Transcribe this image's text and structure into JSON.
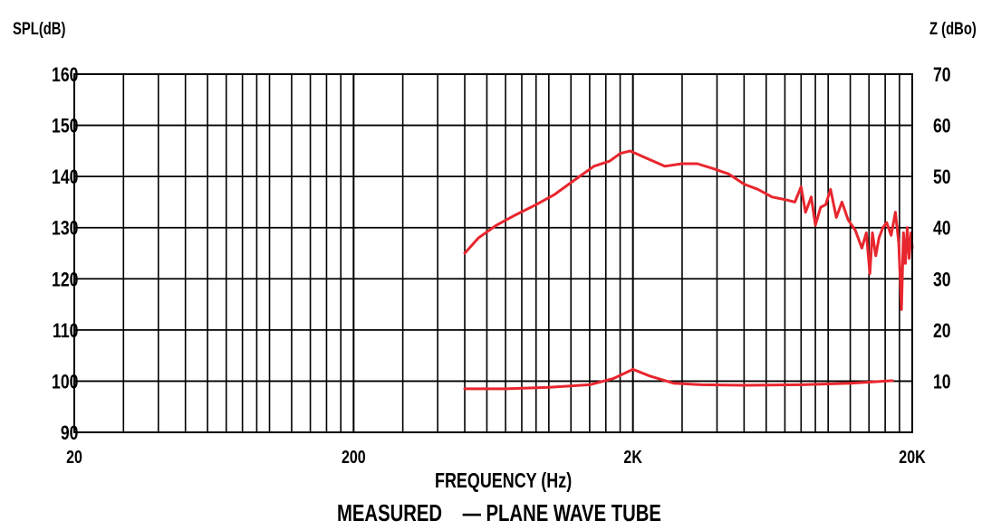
{
  "chart_data": {
    "type": "line",
    "left_axis_label": "SPL(dB)",
    "right_axis_label": "Z (dBo)",
    "xlabel": "FREQUENCY (Hz)",
    "caption": "MEASURED    — PLANE WAVE TUBE",
    "x_scale": "log",
    "xlim": [
      20,
      20000
    ],
    "ylim": [
      90,
      160
    ],
    "y2lim": [
      0,
      70
    ],
    "grid": true,
    "x_tick_labels": [
      {
        "value": 20,
        "label": "20"
      },
      {
        "value": 200,
        "label": "200"
      },
      {
        "value": 2000,
        "label": "2K"
      },
      {
        "value": 20000,
        "label": "20K"
      }
    ],
    "y_ticks": [
      160,
      150,
      140,
      130,
      120,
      110,
      100,
      90
    ],
    "y2_ticks": [
      70,
      60,
      50,
      40,
      30,
      20,
      10
    ],
    "color": "#e8262e",
    "series": [
      {
        "axis": "left",
        "x": [
          500,
          560,
          650,
          760,
          900,
          1050,
          1250,
          1450,
          1650,
          1800,
          1950,
          2050,
          2250,
          2600,
          3000,
          3400,
          3900,
          4400,
          5000,
          5600,
          6300,
          7000,
          7600,
          8000,
          8300,
          8700,
          9000,
          9400,
          9800,
          10200,
          10700,
          11200,
          11800,
          12500,
          13200,
          13700,
          14100,
          14400,
          14800,
          15200,
          15700,
          16200,
          16800,
          17400,
          17900,
          18300,
          18600,
          18900,
          19200,
          19500,
          19800,
          20000
        ],
        "y": [
          125,
          128,
          130.5,
          132.5,
          134.5,
          136.5,
          139.5,
          142,
          143,
          144.5,
          145,
          144.5,
          143.5,
          142,
          142.5,
          142.5,
          141.5,
          140.5,
          138.5,
          137.5,
          136,
          135.5,
          135,
          138,
          133,
          136,
          130.5,
          134,
          134.5,
          137.5,
          132,
          135,
          131.5,
          129.5,
          126,
          129,
          121,
          129,
          124.5,
          128,
          130,
          131,
          128.5,
          133,
          127,
          114,
          129,
          123,
          130,
          124,
          129,
          126
        ]
      },
      {
        "axis": "right",
        "x": [
          500,
          700,
          1000,
          1400,
          1700,
          2000,
          2300,
          2800,
          3500,
          5000,
          8000,
          12000,
          17000
        ],
        "y": [
          8.5,
          8.5,
          8.8,
          9.3,
          10.5,
          12.3,
          11,
          9.6,
          9.3,
          9.2,
          9.3,
          9.6,
          10.1
        ]
      }
    ]
  }
}
